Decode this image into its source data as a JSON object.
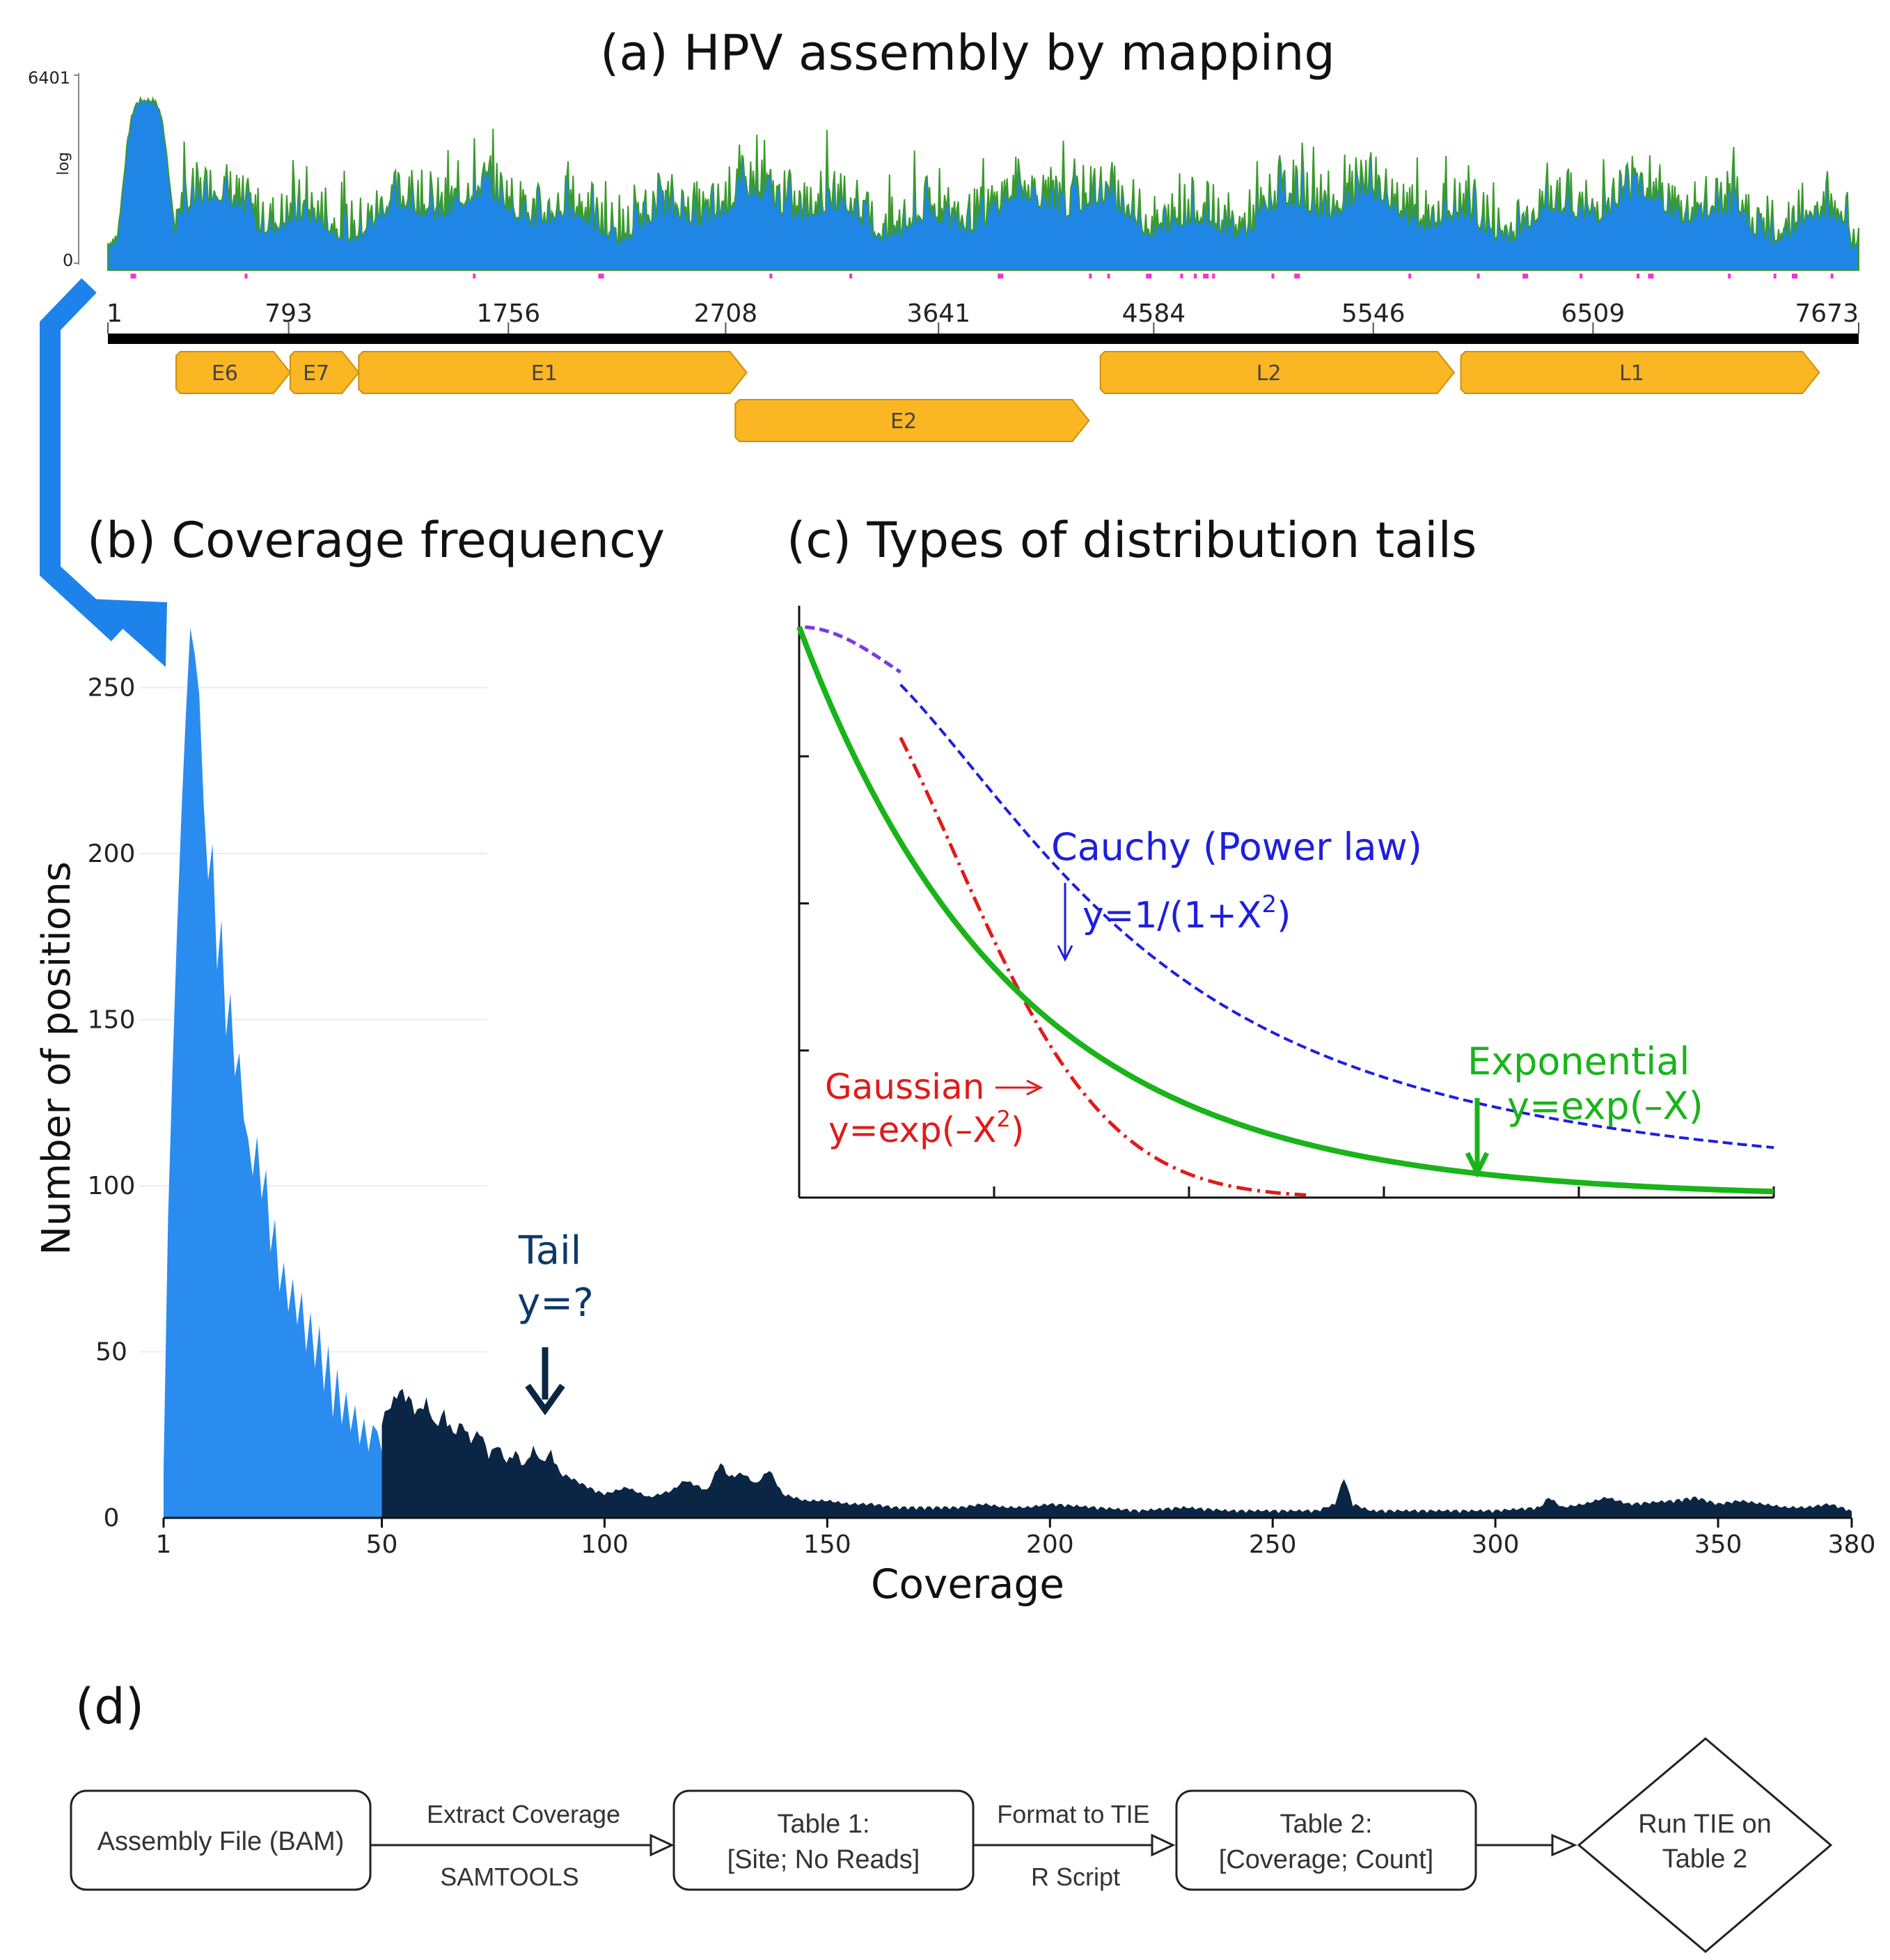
{
  "colors": {
    "coverage_fill": "#1f86e6",
    "coverage_edge": "#3a9a2a",
    "head_fill": "#2b8cef",
    "tail_fill": "#0b2545",
    "gene_fill": "#fbb624",
    "gene_stroke": "#d18f0a",
    "cauchy": "#1e1ee0",
    "gaussian": "#e01b1b",
    "exponential": "#19b419",
    "tail_note": "#0b3a68",
    "marker": "#ff2fd2"
  },
  "panel_a": {
    "title": "(a) HPV assembly by mapping",
    "y_top_label": "6401",
    "y_bottom_label": "0",
    "y_scale_label": "log",
    "chart_data": {
      "type": "area",
      "title": "(a) HPV assembly by mapping",
      "xlabel": "",
      "ylabel": "log",
      "xlim": [
        1,
        7673
      ],
      "ylim": [
        0,
        6401
      ],
      "x_ticks": [
        "1",
        "793",
        "1756",
        "2708",
        "3641",
        "4584",
        "5546",
        "6509",
        "7673"
      ],
      "x_tick_values": [
        1,
        793,
        1756,
        2708,
        3641,
        4584,
        5546,
        6509,
        7673
      ],
      "peak_position": 170,
      "genes": [
        {
          "name": "E6",
          "start": 300,
          "end": 800,
          "row": 0
        },
        {
          "name": "E7",
          "start": 800,
          "end": 1100,
          "row": 0
        },
        {
          "name": "E1",
          "start": 1100,
          "end": 2800,
          "row": 0
        },
        {
          "name": "E2",
          "start": 2750,
          "end": 4300,
          "row": 1
        },
        {
          "name": "L2",
          "start": 4350,
          "end": 5900,
          "row": 0
        },
        {
          "name": "L1",
          "start": 5930,
          "end": 7500,
          "row": 0
        }
      ]
    }
  },
  "panel_b": {
    "title": "(b) Coverage frequency",
    "xlabel": "Coverage",
    "ylabel": "Number of positions",
    "tail_label_line1": "Tail",
    "tail_label_line2": "y=?",
    "chart_data": {
      "type": "area",
      "title": "(b) Coverage frequency",
      "xlabel": "Coverage",
      "ylabel": "Number of positions",
      "xlim": [
        1,
        380
      ],
      "ylim": [
        0,
        260
      ],
      "x_ticks": [
        "1",
        "50",
        "100",
        "150",
        "200",
        "250",
        "300",
        "350",
        "380"
      ],
      "x_tick_values": [
        1,
        50,
        100,
        150,
        200,
        250,
        300,
        350,
        380
      ],
      "y_ticks": [
        "0",
        "50",
        "100",
        "150",
        "200",
        "250"
      ],
      "y_tick_values": [
        0,
        50,
        100,
        150,
        200,
        250
      ],
      "split_coverage": 50,
      "series": [
        {
          "x": [
            1,
            2,
            3,
            4,
            5,
            6,
            7,
            8,
            9,
            10,
            11,
            12,
            13,
            14,
            15,
            16,
            17,
            18,
            19,
            20,
            21,
            22,
            23,
            24,
            25,
            26,
            27,
            28,
            29,
            30,
            31,
            32,
            33,
            34,
            35,
            36,
            37,
            38,
            39,
            40,
            41,
            42,
            43,
            44,
            45,
            46,
            47,
            48,
            49,
            50
          ],
          "y": [
            15,
            90,
            135,
            176,
            212,
            242,
            268,
            260,
            248,
            215,
            192,
            203,
            165,
            180,
            145,
            158,
            133,
            140,
            120,
            114,
            103,
            115,
            96,
            105,
            80,
            90,
            68,
            77,
            62,
            72,
            58,
            68,
            50,
            62,
            45,
            58,
            38,
            52,
            30,
            45,
            28,
            38,
            26,
            34,
            22,
            30,
            20,
            28,
            26,
            20
          ]
        },
        {
          "x": [
            50,
            52,
            54,
            56,
            58,
            60,
            62,
            64,
            66,
            68,
            70,
            72,
            74,
            76,
            78,
            80,
            82,
            84,
            86,
            88,
            90,
            92,
            95,
            98,
            100,
            105,
            110,
            115,
            118,
            120,
            123,
            126,
            128,
            131,
            134,
            137,
            140,
            145,
            150,
            155,
            160,
            165,
            170,
            175,
            180,
            185,
            190,
            195,
            200,
            210,
            220,
            230,
            240,
            250,
            260,
            264,
            266,
            268,
            272,
            280,
            290,
            300,
            310,
            312,
            315,
            320,
            325,
            330,
            340,
            345,
            350,
            355,
            360,
            365,
            370,
            375,
            380
          ],
          "y": [
            28,
            32,
            36,
            34,
            30,
            33,
            26,
            30,
            24,
            27,
            22,
            25,
            18,
            21,
            16,
            19,
            15,
            20,
            16,
            19,
            13,
            12,
            10,
            8,
            7,
            9,
            6,
            8,
            11,
            10,
            8,
            16,
            12,
            13,
            10,
            14,
            7,
            5,
            5,
            4,
            4,
            3,
            3,
            3,
            3,
            4,
            3,
            3,
            4,
            3,
            2,
            3,
            2,
            2,
            2,
            4,
            12,
            4,
            2,
            2,
            2,
            2,
            3,
            6,
            3,
            4,
            6,
            4,
            5,
            6,
            4,
            5,
            4,
            3,
            3,
            4,
            2
          ]
        }
      ]
    }
  },
  "panel_c": {
    "title": "(c) Types of distribution tails",
    "cauchy_label": "Cauchy (Power law)",
    "cauchy_formula_base": "y=1/(1+X",
    "cauchy_formula_sup": "2",
    "cauchy_formula_end": ")",
    "gaussian_label": "Gaussian",
    "gaussian_formula_base": "y=exp(–X",
    "gaussian_formula_sup": "2",
    "gaussian_formula_end": ")",
    "exponential_label": "Exponential",
    "exponential_formula": "y=exp(–X)",
    "chart_data": {
      "type": "line",
      "title": "(c) Types of distribution tails",
      "xlabel": "",
      "ylabel": "",
      "xlim": [
        0,
        5
      ],
      "ylim": [
        0,
        1
      ],
      "series": [
        {
          "name": "Cauchy (Power law)",
          "formula": "y=1/(1+X^2)",
          "x": [
            0,
            0.5,
            1,
            1.5,
            2,
            2.5,
            3,
            3.5,
            4,
            4.5,
            5
          ],
          "y": [
            1,
            0.8,
            0.5,
            0.31,
            0.2,
            0.14,
            0.1,
            0.075,
            0.059,
            0.047,
            0.038
          ]
        },
        {
          "name": "Gaussian",
          "formula": "y=exp(-X^2)",
          "x": [
            0,
            0.5,
            1,
            1.5,
            2,
            2.5,
            3,
            3.5,
            4,
            4.5,
            5
          ],
          "y": [
            1,
            0.78,
            0.37,
            0.105,
            0.018,
            0.002,
            0,
            0,
            0,
            0,
            0
          ]
        },
        {
          "name": "Exponential",
          "formula": "y=exp(-X)",
          "x": [
            0,
            0.5,
            1,
            1.5,
            2,
            2.5,
            3,
            3.5,
            4,
            4.5,
            5
          ],
          "y": [
            1,
            0.61,
            0.37,
            0.22,
            0.135,
            0.082,
            0.05,
            0.03,
            0.018,
            0.011,
            0.007
          ]
        }
      ]
    }
  },
  "panel_d": {
    "title": "(d)",
    "box1": "Assembly File (BAM)",
    "arrow1_top": "Extract Coverage",
    "arrow1_bottom": "SAMTOOLS",
    "box2_line1": "Table 1:",
    "box2_line2": "[Site; No Reads]",
    "arrow2_top": "Format to TIE",
    "arrow2_bottom": "R Script",
    "box3_line1": "Table 2:",
    "box3_line2": "[Coverage; Count]",
    "diamond_line1": "Run TIE on",
    "diamond_line2": "Table 2"
  }
}
